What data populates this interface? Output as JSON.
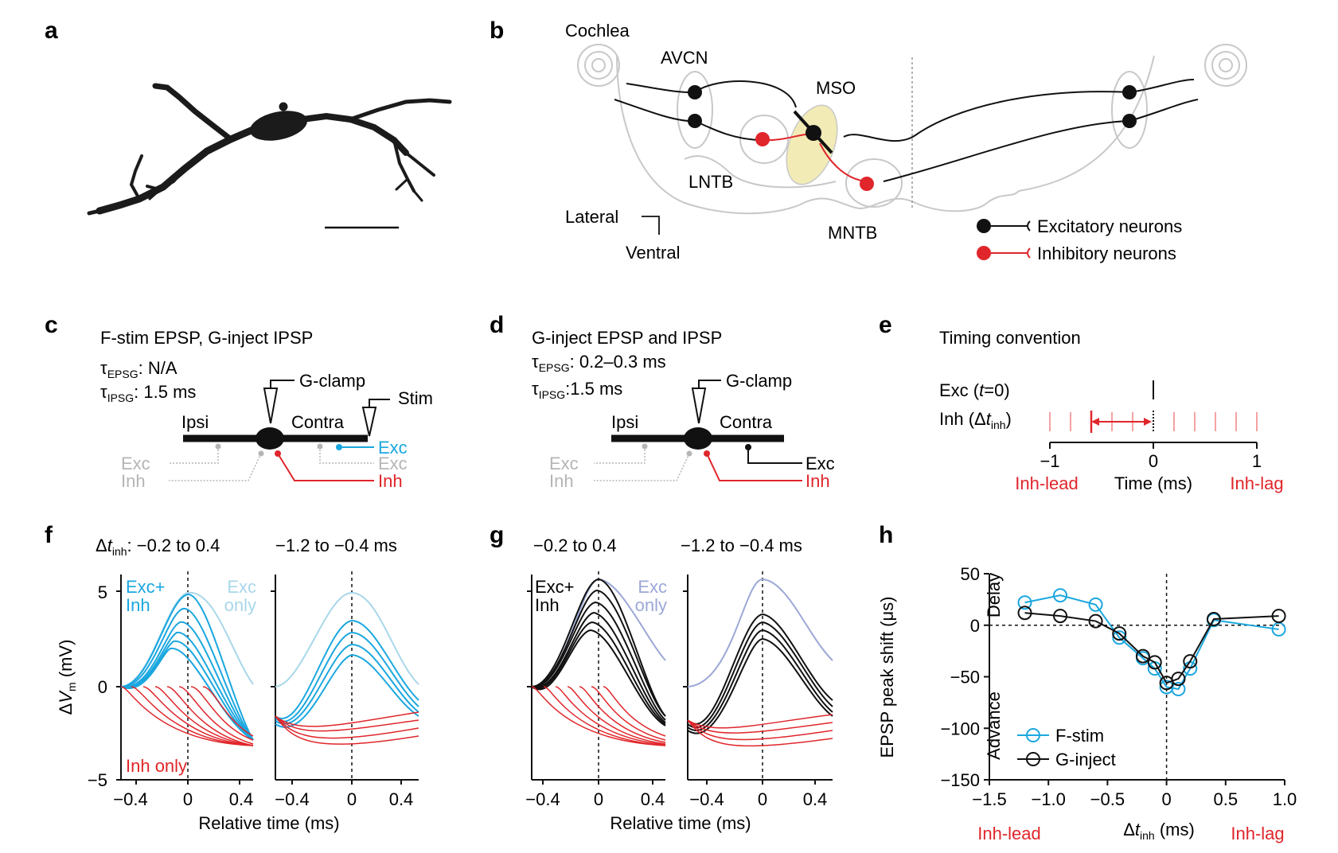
{
  "colors": {
    "exc": "#111111",
    "inh": "#e0262b",
    "cyan": "#1aa7df",
    "cyanLight": "#a9d7ea",
    "lavender": "#9ca8d6",
    "gray": "#b5b5b5",
    "mso": "#f2ebb6",
    "pink": "#f4a2a2"
  },
  "panels": {
    "a": {
      "letter": "a"
    },
    "b": {
      "letter": "b",
      "labels": {
        "cochlea": "Cochlea",
        "avcn": "AVCN",
        "mso": "MSO",
        "lntb": "LNTB",
        "mntb": "MNTB",
        "lateral": "Lateral",
        "ventral": "Ventral"
      },
      "legend": {
        "exc": "Excitatory neurons",
        "inh": "Inhibitory neurons"
      }
    },
    "c": {
      "letter": "c",
      "title": "F-stim EPSP, G-inject IPSP",
      "tau_epsg_sym": "τ",
      "tau_epsg_sub": "EPSG",
      "tau_epsg_val": ": N/A",
      "tau_ipsg_sym": "τ",
      "tau_ipsg_sub": "IPSG",
      "tau_ipsg_val": ": 1.5 ms",
      "gclamp": "G-clamp",
      "stim": "Stim",
      "ipsi": "Ipsi",
      "contra": "Contra",
      "exc_gray1": "Exc",
      "inh_gray1": "Inh",
      "exc_gray2": "Exc",
      "exc_color": "Exc",
      "inh_color": "Inh"
    },
    "d": {
      "letter": "d",
      "title": "G-inject EPSP and IPSP",
      "tau_epsg_sym": "τ",
      "tau_epsg_sub": "EPSG",
      "tau_epsg_val": ": 0.2–0.3 ms",
      "tau_ipsg_sym": "τ",
      "tau_ipsg_sub": "IPSG",
      "tau_ipsg_val": ":1.5 ms",
      "gclamp": "G-clamp",
      "ipsi": "Ipsi",
      "contra": "Contra",
      "exc_gray": "Exc",
      "inh_gray": "Inh",
      "exc_black": "Exc",
      "inh_color": "Inh"
    },
    "e": {
      "letter": "e",
      "title": "Timing convention",
      "exc_row_a": "Exc (",
      "exc_row_t": "t",
      "exc_row_b": "=0)",
      "inh_row_a": "Inh (Δ",
      "inh_row_t": "t",
      "inh_row_sub": "inh",
      "inh_row_b": ")",
      "ticks": [
        "−1",
        "0",
        "1"
      ],
      "xlabel": "Time (ms)",
      "lead": "Inh-lead",
      "lag": "Inh-lag"
    },
    "f": {
      "letter": "f",
      "title_left_a": "Δ",
      "title_left_t": "t",
      "title_left_sub": "inh",
      "title_left_b": ": −0.2 to 0.4",
      "title_right": "−1.2 to −0.4 ms",
      "label_combo1": "Exc+",
      "label_combo2": "Inh",
      "label_only1": "Exc",
      "label_only2": "only",
      "label_inh": "Inh only",
      "ylabel_a": "Δ",
      "ylabel_v": "V",
      "ylabel_sub": "m",
      "ylabel_b": " (mV)",
      "xlabel": "Relative time (ms)",
      "yticks": [
        "5",
        "0",
        "−5"
      ],
      "xticks": [
        "−0.4",
        "0",
        "0.4"
      ]
    },
    "g": {
      "letter": "g",
      "title_left": "−0.2 to 0.4",
      "title_right": "−1.2 to −0.4 ms",
      "label_combo1": "Exc+",
      "label_combo2": "Inh",
      "label_only1": "Exc",
      "label_only2": "only",
      "xlabel": "Relative time (ms)",
      "xticks": [
        "−0.4",
        "0",
        "0.4"
      ]
    },
    "h": {
      "letter": "h",
      "ylabel": "EPSP peak shift (μs)",
      "delay": "Delay",
      "advance": "Advance",
      "xlabel_a": "Δ",
      "xlabel_t": "t",
      "xlabel_sub": "inh",
      "xlabel_b": " (ms)",
      "lead": "Inh-lead",
      "lag": "Inh-lag",
      "legend_fstim": "F-stim",
      "legend_ginject": "G-inject"
    }
  },
  "chart_data": [
    {
      "panel": "h",
      "type": "line",
      "xlim": [
        -1.5,
        1.0
      ],
      "ylim": [
        -150,
        50
      ],
      "xticks": [
        -1.5,
        -1.0,
        -0.5,
        0,
        0.5,
        1.0
      ],
      "xtick_labels": [
        "−1.5",
        "−1.0",
        "−0.5",
        "0",
        "0.5",
        "1.0"
      ],
      "yticks": [
        50,
        0,
        -50,
        -100,
        -150
      ],
      "ytick_labels": [
        "50",
        "0",
        "−50",
        "−100",
        "−150"
      ],
      "series": [
        {
          "name": "F-stim",
          "color": "#1aa7df",
          "x": [
            -1.2,
            -0.9,
            -0.6,
            -0.4,
            -0.2,
            -0.1,
            0,
            0.1,
            0.2,
            0.4,
            0.95
          ],
          "y": [
            22,
            29,
            20,
            -12,
            -32,
            -42,
            -60,
            -62,
            -42,
            5,
            -4
          ]
        },
        {
          "name": "G-inject",
          "color": "#111111",
          "x": [
            -1.2,
            -0.9,
            -0.6,
            -0.4,
            -0.2,
            -0.1,
            0,
            0.1,
            0.2,
            0.4,
            0.95
          ],
          "y": [
            12,
            9,
            4,
            -8,
            -30,
            -36,
            -56,
            -52,
            -35,
            6,
            9
          ]
        }
      ]
    },
    {
      "panel": "f/g",
      "type": "line",
      "xlim": [
        -0.5,
        0.5
      ],
      "ylim": [
        -5,
        6
      ],
      "xticks": [
        -0.4,
        0,
        0.4
      ],
      "yticks": [
        5,
        0,
        -5
      ],
      "note": "Representative voltage traces: Exc-only peak ~5 mV, combined Exc+Inh traces with reduced, earlier peaks; Inh-only traces hyperpolarizing to ~−3 mV."
    }
  ]
}
